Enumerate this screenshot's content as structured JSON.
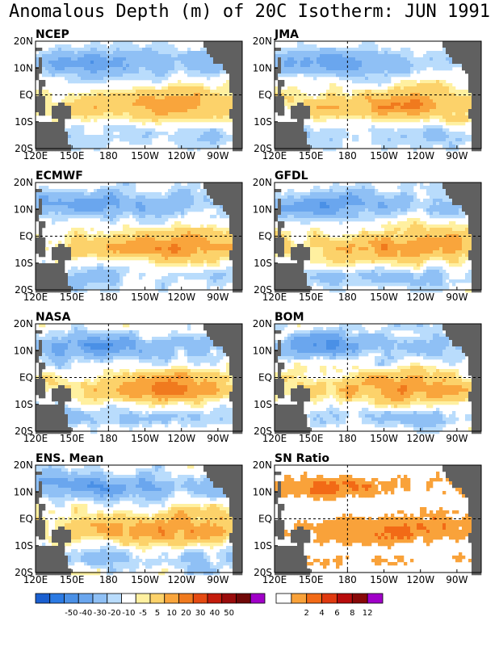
{
  "title": "Anomalous Depth (m) of 20C Isotherm: JUN 1991",
  "chart_data": {
    "type": "heatmap",
    "region": "Tropical Pacific",
    "x_ticks": [
      "120E",
      "150E",
      "180",
      "150W",
      "120W",
      "90W"
    ],
    "y_ticks": [
      "20N",
      "10N",
      "EQ",
      "10S",
      "20S"
    ],
    "xlim_lon_east": [
      120,
      290
    ],
    "ylim_lat": [
      -20,
      20
    ],
    "reference_lines": {
      "lon_east": 180,
      "lat": 0
    },
    "panels": [
      {
        "name": "NCEP"
      },
      {
        "name": "JMA"
      },
      {
        "name": "ECMWF"
      },
      {
        "name": "GFDL"
      },
      {
        "name": "NASA"
      },
      {
        "name": "BOM"
      },
      {
        "name": "ENS. Mean"
      },
      {
        "name": "SN Ratio"
      }
    ],
    "anomaly_colorbar": {
      "labels": [
        "-50",
        "-40",
        "-30",
        "-20",
        "-10",
        "-5",
        "5",
        "10",
        "20",
        "30",
        "40",
        "50"
      ],
      "colors": [
        "#1a5fd0",
        "#2b7ae3",
        "#4a90e6",
        "#6aa6ee",
        "#8fc0f5",
        "#b9dcfc",
        "#ffffff",
        "#fff0a0",
        "#fcd26a",
        "#f9a53c",
        "#f07a1e",
        "#e54a12",
        "#c41c0c",
        "#9a0c0c",
        "#700808",
        "#a000c8"
      ]
    },
    "sn_colorbar": {
      "labels": [
        "2",
        "4",
        "6",
        "8",
        "12"
      ],
      "colors": [
        "#ffffff",
        "#f9a23a",
        "#f26a16",
        "#e03a10",
        "#b80c0c",
        "#880808",
        "#a000c8"
      ]
    }
  }
}
